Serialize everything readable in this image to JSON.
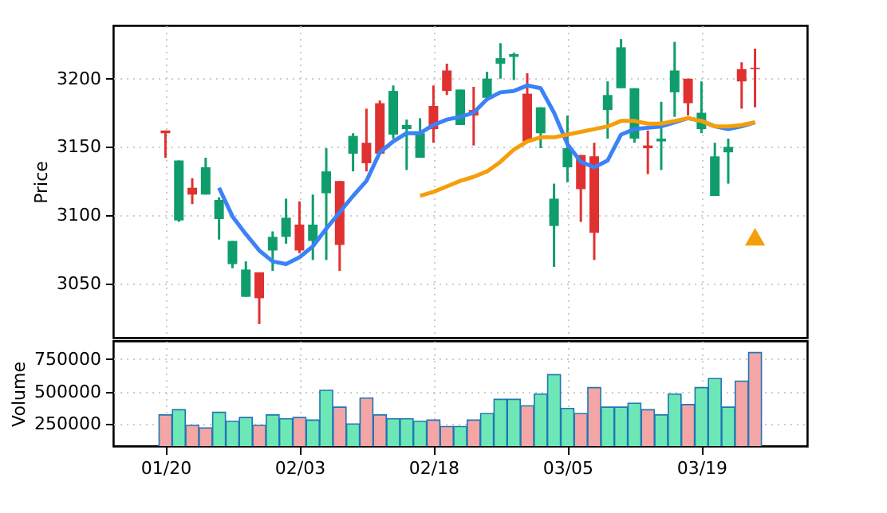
{
  "chart_data": [
    {
      "type": "candlestick",
      "ylabel": "Price",
      "categories": [
        null,
        null,
        null,
        null,
        null,
        null,
        null,
        null,
        null,
        null,
        null,
        null,
        null,
        null,
        null,
        null,
        null,
        null,
        null,
        null,
        null,
        null,
        null,
        null,
        null,
        null,
        null,
        null,
        null,
        null,
        null,
        null,
        null,
        null,
        null,
        null,
        null,
        null,
        null,
        null,
        null,
        null,
        null,
        null,
        null
      ],
      "ohlc": [
        [
          3162,
          3162,
          3142,
          3160
        ],
        [
          3096,
          3140,
          3095,
          3140
        ],
        [
          3120,
          3127,
          3108,
          3115
        ],
        [
          3115,
          3142,
          3115,
          3135
        ],
        [
          3097,
          3113,
          3082,
          3111
        ],
        [
          3064,
          3081,
          3061,
          3081
        ],
        [
          3040,
          3066,
          3040,
          3060
        ],
        [
          3058,
          3058,
          3020,
          3039
        ],
        [
          3074,
          3088,
          3059,
          3084
        ],
        [
          3084,
          3112,
          3079,
          3098
        ],
        [
          3093,
          3110,
          3072,
          3074
        ],
        [
          3081,
          3115,
          3067,
          3093
        ],
        [
          3116,
          3149,
          3067,
          3132
        ],
        [
          3125,
          3125,
          3059,
          3078
        ],
        [
          3145,
          3160,
          3132,
          3158
        ],
        [
          3153,
          3178,
          3132,
          3138
        ],
        [
          3182,
          3184,
          3145,
          3145
        ],
        [
          3159,
          3195,
          3156,
          3191
        ],
        [
          3163,
          3170,
          3133,
          3166
        ],
        [
          3142,
          3171,
          3142,
          3160
        ],
        [
          3180,
          3195,
          3153,
          3163
        ],
        [
          3206,
          3211,
          3188,
          3191
        ],
        [
          3166,
          3192,
          3166,
          3192
        ],
        [
          3177,
          3194,
          3151,
          3173
        ],
        [
          3186,
          3205,
          3186,
          3200
        ],
        [
          3211,
          3226,
          3200,
          3215
        ],
        [
          3216,
          3219,
          3199,
          3218
        ],
        [
          3189,
          3204,
          3154,
          3154
        ],
        [
          3160,
          3179,
          3149,
          3179
        ],
        [
          3092,
          3123,
          3062,
          3112
        ],
        [
          3135,
          3173,
          3124,
          3149
        ],
        [
          3144,
          3144,
          3095,
          3119
        ],
        [
          3143,
          3153,
          3067,
          3087
        ],
        [
          3177,
          3198,
          3156,
          3188
        ],
        [
          3193,
          3229,
          3193,
          3223
        ],
        [
          3156,
          3193,
          3153,
          3193
        ],
        [
          3151,
          3162,
          3130,
          3149
        ],
        [
          3154,
          3183,
          3133,
          3156
        ],
        [
          3190,
          3227,
          3172,
          3206
        ],
        [
          3200,
          3200,
          3173,
          3182
        ],
        [
          3163,
          3198,
          3160,
          3175
        ],
        [
          3114,
          3153,
          3114,
          3143
        ],
        [
          3146,
          3156,
          3123,
          3150
        ],
        [
          3207,
          3212,
          3178,
          3198
        ],
        [
          3208,
          3222,
          3179,
          3207
        ]
      ],
      "colors": [
        "#e03131",
        "#0f9d6b",
        "#e03131",
        "#0f9d6b",
        "#0f9d6b",
        "#0f9d6b",
        "#0f9d6b",
        "#e03131",
        "#0f9d6b",
        "#0f9d6b",
        "#e03131",
        "#0f9d6b",
        "#0f9d6b",
        "#e03131",
        "#0f9d6b",
        "#e03131",
        "#e03131",
        "#0f9d6b",
        "#0f9d6b",
        "#0f9d6b",
        "#e03131",
        "#e03131",
        "#0f9d6b",
        "#e03131",
        "#0f9d6b",
        "#0f9d6b",
        "#0f9d6b",
        "#e03131",
        "#0f9d6b",
        "#0f9d6b",
        "#0f9d6b",
        "#e03131",
        "#e03131",
        "#0f9d6b",
        "#0f9d6b",
        "#0f9d6b",
        "#e03131",
        "#0f9d6b",
        "#0f9d6b",
        "#e03131",
        "#0f9d6b",
        "#0f9d6b",
        "#0f9d6b",
        "#e03131",
        "#e03131"
      ],
      "series": [
        {
          "type": "line",
          "color": "#3b82f6",
          "values": [
            null,
            null,
            null,
            null,
            3120,
            3099,
            3086,
            3074,
            3066,
            3064,
            3069,
            3077,
            3090,
            3102,
            3114,
            3125,
            3146,
            3154,
            3160,
            3160,
            3166,
            3170,
            3172,
            3175,
            3185,
            3190,
            3191,
            3195,
            3193,
            3175,
            3152,
            3139,
            3135,
            3140,
            3159,
            3163,
            3164,
            3165,
            3168,
            3171,
            3169,
            3165,
            3163,
            3165,
            3168
          ]
        },
        {
          "type": "line",
          "color": "#f59e0b",
          "values": [
            null,
            null,
            null,
            null,
            null,
            null,
            null,
            null,
            null,
            null,
            null,
            null,
            null,
            null,
            null,
            null,
            null,
            null,
            null,
            3114,
            3117,
            3121,
            3125,
            3128,
            3132,
            3139,
            3148,
            3154,
            3157,
            3157,
            3159,
            3161,
            3163,
            3165,
            3169,
            3169,
            3167,
            3167,
            3169,
            3171,
            3169,
            3165,
            3165,
            3166,
            3168
          ]
        },
        {
          "type": "scatter",
          "color": "#f59e0b",
          "marker": "triangle",
          "values": [
            null,
            null,
            null,
            null,
            null,
            null,
            null,
            null,
            null,
            null,
            null,
            null,
            null,
            null,
            null,
            null,
            null,
            null,
            null,
            null,
            null,
            null,
            null,
            null,
            null,
            null,
            null,
            null,
            null,
            null,
            null,
            null,
            null,
            null,
            null,
            null,
            null,
            null,
            null,
            null,
            null,
            null,
            null,
            null,
            3084
          ]
        }
      ],
      "ylim": [
        3010,
        3239
      ],
      "yticks": [
        3050,
        3100,
        3150,
        3200
      ],
      "grid": true,
      "tick_labels": "y",
      "line_style": "solid"
    },
    {
      "type": "bar",
      "ylabel": "Volume",
      "categories": [
        "01/20",
        null,
        null,
        null,
        null,
        null,
        null,
        null,
        null,
        null,
        "02/03",
        null,
        null,
        null,
        null,
        null,
        null,
        null,
        null,
        null,
        "02/18",
        null,
        null,
        null,
        null,
        null,
        null,
        null,
        null,
        null,
        "03/05",
        null,
        null,
        null,
        null,
        null,
        null,
        null,
        null,
        null,
        "03/19",
        null,
        null,
        null,
        null
      ],
      "values": [
        320000,
        360000,
        240000,
        220000,
        340000,
        270000,
        300000,
        240000,
        320000,
        290000,
        300000,
        280000,
        510000,
        380000,
        250000,
        450000,
        320000,
        290000,
        290000,
        270000,
        280000,
        230000,
        230000,
        280000,
        330000,
        440000,
        440000,
        390000,
        480000,
        630000,
        370000,
        330000,
        530000,
        380000,
        380000,
        410000,
        360000,
        320000,
        480000,
        400000,
        530000,
        600000,
        380000,
        580000,
        800000
      ],
      "colors": [
        "#f4a6a6",
        "#6ee7b7",
        "#f4a6a6",
        "#f4a6a6",
        "#6ee7b7",
        "#6ee7b7",
        "#6ee7b7",
        "#f4a6a6",
        "#6ee7b7",
        "#6ee7b7",
        "#f4a6a6",
        "#6ee7b7",
        "#6ee7b7",
        "#f4a6a6",
        "#6ee7b7",
        "#f4a6a6",
        "#f4a6a6",
        "#6ee7b7",
        "#6ee7b7",
        "#6ee7b7",
        "#f4a6a6",
        "#f4a6a6",
        "#6ee7b7",
        "#f4a6a6",
        "#6ee7b7",
        "#6ee7b7",
        "#6ee7b7",
        "#f4a6a6",
        "#6ee7b7",
        "#6ee7b7",
        "#6ee7b7",
        "#f4a6a6",
        "#f4a6a6",
        "#6ee7b7",
        "#6ee7b7",
        "#6ee7b7",
        "#f4a6a6",
        "#6ee7b7",
        "#6ee7b7",
        "#f4a6a6",
        "#6ee7b7",
        "#6ee7b7",
        "#6ee7b7",
        "#f4a6a6",
        "#f4a6a6"
      ],
      "ylim": [
        80000,
        890000
      ],
      "yticks": [
        250000,
        500000,
        750000
      ],
      "grid": true
    }
  ]
}
